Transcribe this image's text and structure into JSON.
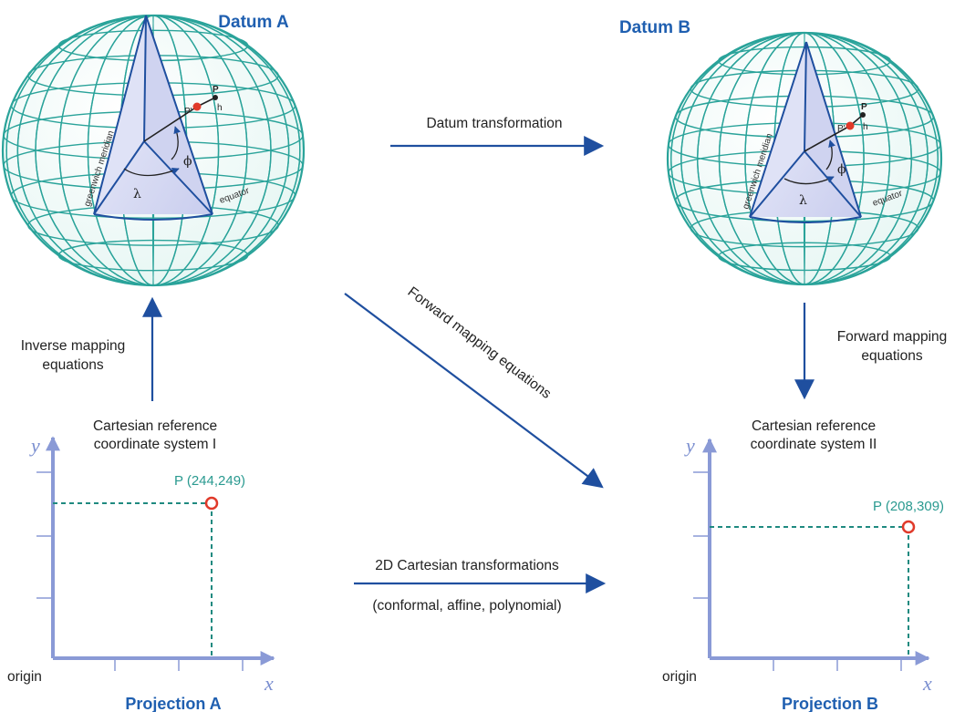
{
  "datum_a": {
    "title": "Datum A",
    "meridian_label": "greenwich meridian",
    "equator_label": "equator",
    "point_label": "P",
    "point_prime_label": "P'",
    "height_label": "h",
    "lambda": "λ",
    "phi": "ϕ"
  },
  "datum_b": {
    "title": "Datum B",
    "meridian_label": "greenwich meridian",
    "equator_label": "equator",
    "point_label": "P",
    "point_prime_label": "P'",
    "height_label": "h",
    "lambda": "λ",
    "phi": "ϕ"
  },
  "arrows": {
    "datum_transformation": "Datum transformation",
    "inverse_mapping_line1": "Inverse mapping",
    "inverse_mapping_line2": "equations",
    "forward_mapping_diagonal": "Forward mapping equations",
    "forward_mapping_right_line1": "Forward  mapping",
    "forward_mapping_right_line2": "equations",
    "cartesian_transformations": "2D Cartesian transformations",
    "cartesian_transformations_sub": "(conformal, affine, polynomial)"
  },
  "projection_a": {
    "header_line1": "Cartesian reference",
    "header_line2": "coordinate system I",
    "point_label": "P (244,249)",
    "y_axis": "y",
    "x_axis": "x",
    "origin": "origin",
    "title": "Projection A"
  },
  "projection_b": {
    "header_line1": "Cartesian reference",
    "header_line2": "coordinate system II",
    "point_label": "P (208,309)",
    "y_axis": "y",
    "x_axis": "x",
    "origin": "origin",
    "title": "Projection B"
  },
  "colors": {
    "arrow": "#1f4f9f",
    "title": "#1f5fb0",
    "grid": "#2aa39a",
    "axis": "#8a9ad6",
    "point": "#e03a2a",
    "wedge": "#d6d8f2"
  }
}
